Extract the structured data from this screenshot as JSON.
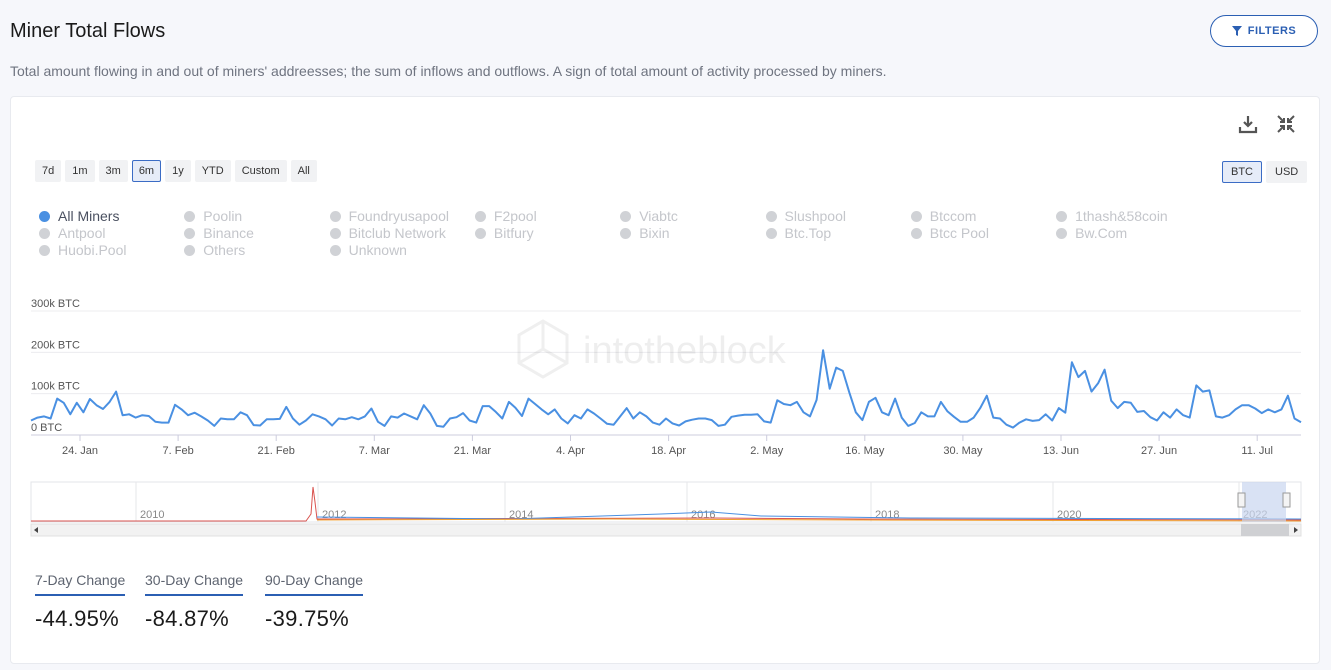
{
  "header": {
    "title": "Miner Total Flows",
    "filters_label": "FILTERS",
    "subtitle": "Total amount flowing in and out of miners' addreesses; the sum of inflows and outflows. A sign of total amount of activity processed by miners."
  },
  "toolbar": {
    "download_icon": "download-icon",
    "collapse_icon": "collapse-icon"
  },
  "ranges": [
    {
      "label": "7d",
      "active": false
    },
    {
      "label": "1m",
      "active": false
    },
    {
      "label": "3m",
      "active": false
    },
    {
      "label": "6m",
      "active": true
    },
    {
      "label": "1y",
      "active": false
    },
    {
      "label": "YTD",
      "active": false
    },
    {
      "label": "Custom",
      "active": false
    },
    {
      "label": "All",
      "active": false
    }
  ],
  "units": [
    {
      "label": "BTC",
      "active": true
    },
    {
      "label": "USD",
      "active": false
    }
  ],
  "legend": [
    {
      "label": "All Miners",
      "active": true
    },
    {
      "label": "Poolin",
      "active": false
    },
    {
      "label": "Foundryusapool",
      "active": false
    },
    {
      "label": "F2pool",
      "active": false
    },
    {
      "label": "Viabtc",
      "active": false
    },
    {
      "label": "Slushpool",
      "active": false
    },
    {
      "label": "Btccom",
      "active": false
    },
    {
      "label": "1thash&58coin",
      "active": false
    },
    {
      "label": "Antpool",
      "active": false
    },
    {
      "label": "Binance",
      "active": false
    },
    {
      "label": "Bitclub Network",
      "active": false
    },
    {
      "label": "Bitfury",
      "active": false
    },
    {
      "label": "Bixin",
      "active": false
    },
    {
      "label": "Btc.Top",
      "active": false
    },
    {
      "label": "Btcc Pool",
      "active": false
    },
    {
      "label": "Bw.Com",
      "active": false
    },
    {
      "label": "Huobi.Pool",
      "active": false
    },
    {
      "label": "Others",
      "active": false
    },
    {
      "label": "Unknown",
      "active": false
    }
  ],
  "watermark": "intotheblock",
  "chart_data": {
    "type": "line",
    "series": [
      {
        "name": "All Miners",
        "color": "#4a90e2",
        "values": [
          35000,
          42000,
          45000,
          40000,
          88000,
          78000,
          50000,
          78000,
          55000,
          87000,
          72000,
          63000,
          80000,
          105000,
          48000,
          50000,
          42000,
          48000,
          46000,
          32000,
          30000,
          30000,
          73000,
          62000,
          48000,
          54000,
          45000,
          35000,
          22000,
          40000,
          38000,
          38000,
          55000,
          48000,
          24000,
          23000,
          38000,
          38000,
          39000,
          68000,
          40000,
          25000,
          35000,
          50000,
          45000,
          38000,
          23000,
          40000,
          38000,
          43000,
          38000,
          45000,
          64000,
          32000,
          22000,
          45000,
          42000,
          52000,
          45000,
          38000,
          72000,
          52000,
          22000,
          20000,
          40000,
          43000,
          53000,
          35000,
          30000,
          70000,
          70000,
          56000,
          40000,
          80000,
          66000,
          46000,
          88000,
          75000,
          62000,
          50000,
          62000,
          40000,
          28000,
          48000,
          40000,
          62000,
          52000,
          40000,
          27000,
          25000,
          45000,
          65000,
          40000,
          55000,
          45000,
          30000,
          25000,
          40000,
          28000,
          23000,
          33000,
          37000,
          40000,
          40000,
          36000,
          22000,
          25000,
          44000,
          47000,
          49000,
          49000,
          50000,
          33000,
          30000,
          84000,
          75000,
          72000,
          80000,
          55000,
          45000,
          85000,
          205000,
          112000,
          163000,
          155000,
          103000,
          55000,
          36000,
          80000,
          90000,
          55000,
          48000,
          88000,
          42000,
          22000,
          29000,
          55000,
          45000,
          45000,
          80000,
          57000,
          44000,
          32000,
          32000,
          42000,
          65000,
          95000,
          42000,
          40000,
          25000,
          18000,
          30000,
          38000,
          34000,
          36000,
          50000,
          35000,
          65000,
          54000,
          176000,
          140000,
          155000,
          105000,
          125000,
          158000,
          83000,
          65000,
          80000,
          78000,
          56000,
          58000,
          43000,
          35000,
          55000,
          42000,
          62000,
          48000,
          42000,
          120000,
          105000,
          108000,
          45000,
          42000,
          48000,
          62000,
          72000,
          72000,
          64000,
          53000,
          62000,
          55000,
          62000,
          95000,
          40000,
          31000
        ]
      }
    ],
    "x_ticks": [
      "24. Jan",
      "7. Feb",
      "21. Feb",
      "7. Mar",
      "21. Mar",
      "4. Apr",
      "18. Apr",
      "2. May",
      "16. May",
      "30. May",
      "13. Jun",
      "27. Jun",
      "11. Jul"
    ],
    "y_ticks": [
      "0 BTC",
      "100k BTC",
      "200k BTC",
      "300k BTC"
    ],
    "ylim": [
      0,
      300000
    ],
    "navigator": {
      "year_labels": [
        "2010",
        "2012",
        "2014",
        "2016",
        "2018",
        "2020",
        "2022"
      ],
      "selected_range": "6m"
    }
  },
  "stats": [
    {
      "label": "7-Day Change",
      "value": "-44.95%"
    },
    {
      "label": "30-Day Change",
      "value": "-84.87%"
    },
    {
      "label": "90-Day Change",
      "value": "-39.75%"
    }
  ]
}
